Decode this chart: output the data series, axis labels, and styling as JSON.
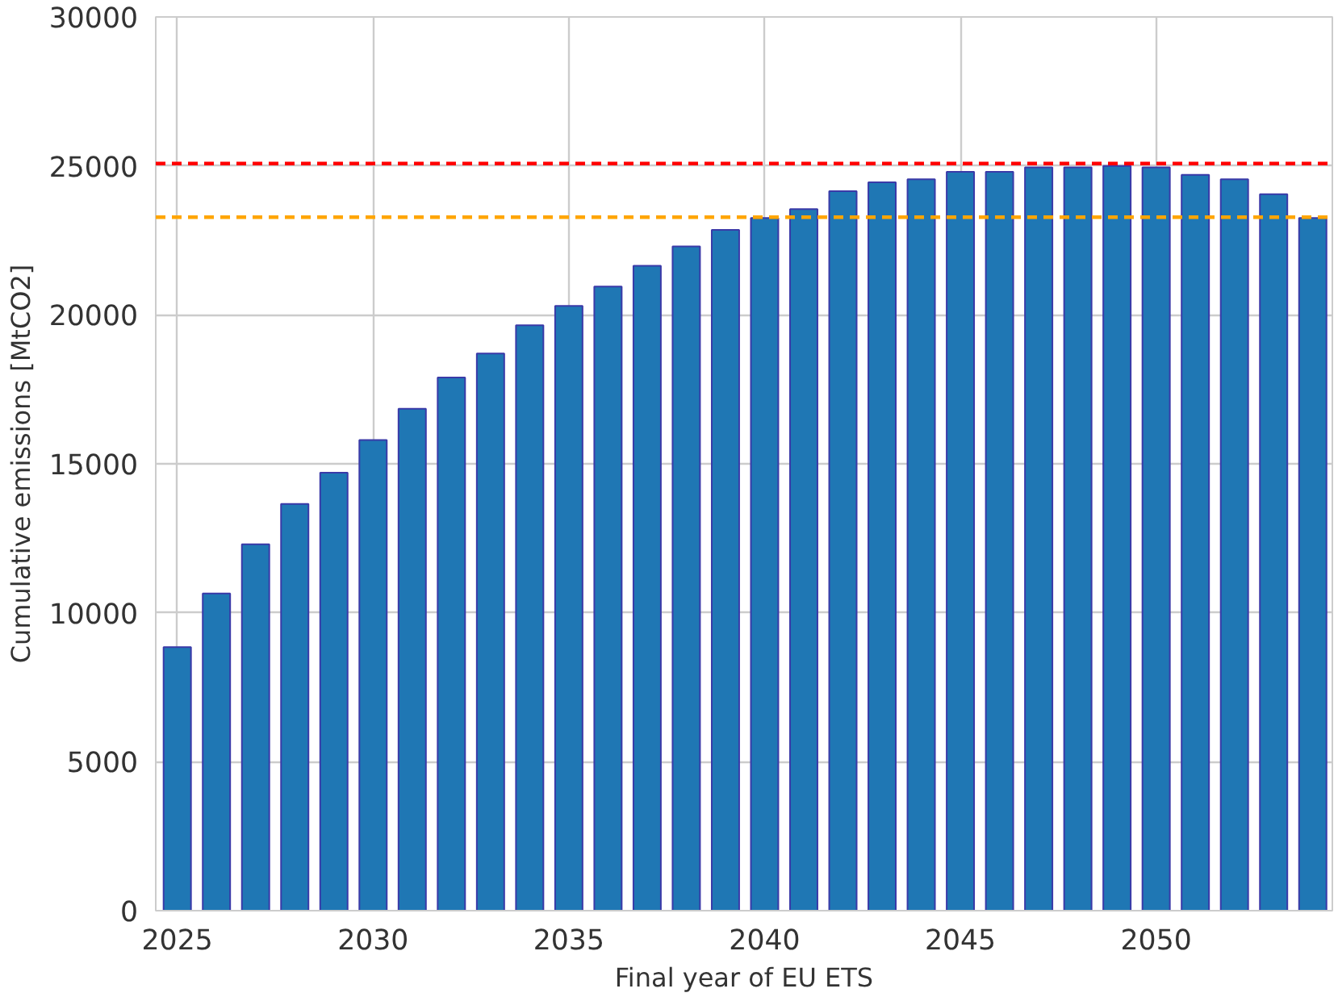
{
  "chart_data": {
    "type": "bar",
    "xlabel": "Final year of EU ETS",
    "ylabel": "Cumulative emissions [MtCO2]",
    "x": [
      2025,
      2026,
      2027,
      2028,
      2029,
      2030,
      2031,
      2032,
      2033,
      2034,
      2035,
      2036,
      2037,
      2038,
      2039,
      2040,
      2041,
      2042,
      2043,
      2044,
      2045,
      2046,
      2047,
      2048,
      2049,
      2050,
      2051,
      2052,
      2053,
      2054
    ],
    "values": [
      8850,
      10650,
      12300,
      13650,
      14700,
      15800,
      16850,
      17900,
      18700,
      19650,
      20300,
      20950,
      21650,
      22300,
      22850,
      23250,
      23550,
      24150,
      24450,
      24550,
      24800,
      24800,
      24950,
      24950,
      25000,
      24950,
      24700,
      24550,
      24050,
      23250
    ],
    "color": "#1f77b4",
    "xlim": [
      2024.45,
      2054.5
    ],
    "xticks": [
      2025,
      2030,
      2035,
      2040,
      2045,
      2050
    ],
    "ylim": [
      0,
      30000
    ],
    "yticks": [
      0,
      5000,
      10000,
      15000,
      20000,
      25000,
      30000
    ],
    "grid": true,
    "ref_lines": [
      {
        "axis": "y",
        "value": 25080,
        "color": "#ff0000",
        "line_style": "dashed"
      },
      {
        "axis": "y",
        "value": 23280,
        "color": "#ffa500",
        "line_style": "dashed"
      }
    ]
  }
}
